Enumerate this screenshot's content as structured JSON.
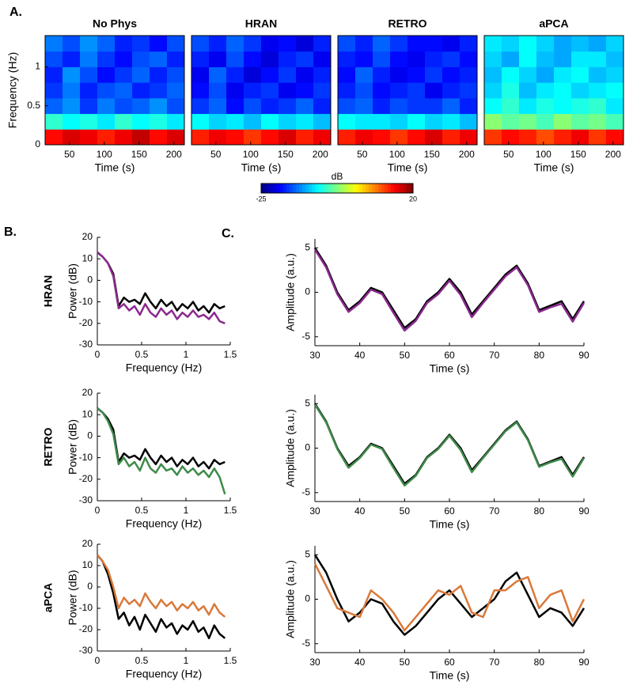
{
  "chart_data": [
    {
      "type": "heatmap",
      "panel_label": "A.",
      "title": "No Phys",
      "xlabel": "Time (s)",
      "ylabel": "Frequency (Hz)",
      "xbins": [
        15,
        40,
        65,
        90,
        115,
        140,
        165,
        190,
        215
      ],
      "ybins": [
        0,
        0.2,
        0.4,
        0.6,
        0.8,
        1,
        1.2,
        1.4
      ],
      "xlim": [
        15,
        215
      ],
      "ylim": [
        0,
        1.4
      ],
      "xticks": [
        50,
        100,
        150,
        200
      ],
      "yticks": [
        0,
        0.5,
        1
      ],
      "values": [
        [
          14,
          16,
          15,
          13,
          15,
          17,
          14,
          16
        ],
        [
          -6,
          -8,
          -7,
          -9,
          -6,
          -8,
          -7,
          -9
        ],
        [
          -15,
          -13,
          -17,
          -14,
          -16,
          -15,
          -13,
          -16
        ],
        [
          -17,
          -14,
          -18,
          -16,
          -15,
          -18,
          -17,
          -15
        ],
        [
          -18,
          -13,
          -16,
          -19,
          -17,
          -15,
          -18,
          -16
        ],
        [
          -16,
          -18,
          -14,
          -17,
          -19,
          -16,
          -15,
          -18
        ],
        [
          -14,
          -16,
          -13,
          -15,
          -18,
          -17,
          -19,
          -16
        ]
      ]
    },
    {
      "type": "heatmap",
      "title": "HRAN",
      "xlabel": "Time (s)",
      "xbins": [
        15,
        40,
        65,
        90,
        115,
        140,
        165,
        190,
        215
      ],
      "ybins": [
        0,
        0.2,
        0.4,
        0.6,
        0.8,
        1,
        1.2,
        1.4
      ],
      "xlim": [
        15,
        215
      ],
      "ylim": [
        0,
        1.4
      ],
      "xticks": [
        50,
        100,
        150,
        200
      ],
      "values": [
        [
          13,
          15,
          14,
          12,
          14,
          16,
          13,
          15
        ],
        [
          -8,
          -10,
          -9,
          -11,
          -8,
          -10,
          -9,
          -11
        ],
        [
          -17,
          -15,
          -19,
          -16,
          -18,
          -17,
          -15,
          -18
        ],
        [
          -19,
          -16,
          -20,
          -18,
          -17,
          -20,
          -19,
          -17
        ],
        [
          -20,
          -15,
          -18,
          -21,
          -19,
          -17,
          -20,
          -18
        ],
        [
          -18,
          -20,
          -16,
          -19,
          -21,
          -18,
          -17,
          -20
        ],
        [
          -16,
          -18,
          -15,
          -17,
          -20,
          -19,
          -21,
          -18
        ]
      ]
    },
    {
      "type": "heatmap",
      "title": "RETRO",
      "xlabel": "Time (s)",
      "xbins": [
        15,
        40,
        65,
        90,
        115,
        140,
        165,
        190,
        215
      ],
      "ybins": [
        0,
        0.2,
        0.4,
        0.6,
        0.8,
        1,
        1.2,
        1.4
      ],
      "xlim": [
        15,
        215
      ],
      "ylim": [
        0,
        1.4
      ],
      "xticks": [
        50,
        100,
        150,
        200
      ],
      "values": [
        [
          13,
          15,
          14,
          12,
          14,
          16,
          13,
          15
        ],
        [
          -8,
          -9,
          -9,
          -10,
          -8,
          -10,
          -9,
          -11
        ],
        [
          -16,
          -15,
          -18,
          -16,
          -17,
          -17,
          -15,
          -18
        ],
        [
          -18,
          -16,
          -19,
          -18,
          -17,
          -20,
          -18,
          -17
        ],
        [
          -19,
          -15,
          -18,
          -20,
          -19,
          -17,
          -19,
          -18
        ],
        [
          -18,
          -19,
          -16,
          -19,
          -20,
          -18,
          -17,
          -19
        ],
        [
          -16,
          -18,
          -15,
          -17,
          -19,
          -19,
          -20,
          -18
        ]
      ]
    },
    {
      "type": "heatmap",
      "title": "aPCA",
      "xlabel": "Time (s)",
      "xbins": [
        15,
        40,
        65,
        90,
        115,
        140,
        165,
        190,
        215
      ],
      "ybins": [
        0,
        0.2,
        0.4,
        0.6,
        0.8,
        1,
        1.2,
        1.4
      ],
      "xlim": [
        15,
        215
      ],
      "ylim": [
        0,
        1.4
      ],
      "xticks": [
        50,
        100,
        150,
        200
      ],
      "values": [
        [
          12,
          14,
          13,
          11,
          13,
          15,
          12,
          14
        ],
        [
          -2,
          -4,
          -3,
          -5,
          -2,
          -4,
          -3,
          -5
        ],
        [
          -8,
          -6,
          -9,
          -7,
          -8,
          -7,
          -6,
          -9
        ],
        [
          -10,
          -7,
          -11,
          -9,
          -8,
          -10,
          -9,
          -8
        ],
        [
          -11,
          -8,
          -10,
          -12,
          -9,
          -8,
          -11,
          -10
        ],
        [
          -10,
          -12,
          -8,
          -11,
          -12,
          -9,
          -9,
          -11
        ],
        [
          -9,
          -10,
          -8,
          -10,
          -12,
          -11,
          -12,
          -10
        ]
      ]
    },
    {
      "type": "colorbar",
      "label": "dB",
      "zlim": [
        -25,
        20
      ],
      "zticks": [
        -25,
        20
      ]
    },
    {
      "type": "line",
      "panel_label": "B.",
      "row_label": "HRAN",
      "xlabel": "Frequency (Hz)",
      "ylabel": "Power (dB)",
      "xlim": [
        0,
        1.5
      ],
      "ylim": [
        -30,
        20
      ],
      "xticks": [
        0,
        0.5,
        1,
        1.5
      ],
      "yticks": [
        -30,
        -20,
        -10,
        0,
        10,
        20
      ],
      "x": [
        0,
        0.06,
        0.12,
        0.18,
        0.24,
        0.3,
        0.36,
        0.42,
        0.48,
        0.54,
        0.6,
        0.66,
        0.72,
        0.78,
        0.84,
        0.9,
        0.96,
        1.02,
        1.08,
        1.14,
        1.2,
        1.26,
        1.32,
        1.38,
        1.44
      ],
      "series": [
        {
          "color": "#000000",
          "values": [
            13,
            11,
            8,
            3,
            -12,
            -8,
            -10,
            -9,
            -11,
            -6,
            -10,
            -13,
            -9,
            -12,
            -10,
            -14,
            -11,
            -13,
            -10,
            -14,
            -12,
            -15,
            -11,
            -13,
            -12
          ]
        },
        {
          "color": "#8b2a8f",
          "values": [
            13,
            11,
            8,
            2,
            -13,
            -11,
            -14,
            -12,
            -16,
            -11,
            -15,
            -17,
            -13,
            -16,
            -14,
            -18,
            -15,
            -17,
            -14,
            -17,
            -16,
            -18,
            -15,
            -19,
            -20
          ]
        }
      ]
    },
    {
      "type": "line",
      "row_label": "RETRO",
      "xlabel": "Frequency (Hz)",
      "ylabel": "Power (dB)",
      "xlim": [
        0,
        1.5
      ],
      "ylim": [
        -30,
        20
      ],
      "xticks": [
        0,
        0.5,
        1,
        1.5
      ],
      "yticks": [
        -30,
        -20,
        -10,
        0,
        10,
        20
      ],
      "x": [
        0,
        0.06,
        0.12,
        0.18,
        0.24,
        0.3,
        0.36,
        0.42,
        0.48,
        0.54,
        0.6,
        0.66,
        0.72,
        0.78,
        0.84,
        0.9,
        0.96,
        1.02,
        1.08,
        1.14,
        1.2,
        1.26,
        1.32,
        1.38,
        1.44
      ],
      "series": [
        {
          "color": "#000000",
          "values": [
            13,
            11,
            8,
            3,
            -12,
            -8,
            -10,
            -9,
            -11,
            -6,
            -10,
            -13,
            -9,
            -12,
            -10,
            -14,
            -11,
            -13,
            -10,
            -14,
            -12,
            -15,
            -11,
            -13,
            -12
          ]
        },
        {
          "color": "#3f8a4a",
          "values": [
            13,
            11,
            7,
            1,
            -13,
            -10,
            -14,
            -12,
            -16,
            -10,
            -15,
            -17,
            -13,
            -16,
            -15,
            -18,
            -14,
            -17,
            -15,
            -18,
            -16,
            -19,
            -15,
            -19,
            -27
          ]
        }
      ]
    },
    {
      "type": "line",
      "row_label": "aPCA",
      "xlabel": "Frequency (Hz)",
      "ylabel": "Power (dB)",
      "xlim": [
        0,
        1.5
      ],
      "ylim": [
        -30,
        20
      ],
      "xticks": [
        0,
        0.5,
        1,
        1.5
      ],
      "yticks": [
        -30,
        -20,
        -10,
        0,
        10,
        20
      ],
      "x": [
        0,
        0.06,
        0.12,
        0.18,
        0.24,
        0.3,
        0.36,
        0.42,
        0.48,
        0.54,
        0.6,
        0.66,
        0.72,
        0.78,
        0.84,
        0.9,
        0.96,
        1.02,
        1.08,
        1.14,
        1.2,
        1.26,
        1.32,
        1.38,
        1.44
      ],
      "series": [
        {
          "color": "#000000",
          "values": [
            15,
            12,
            6,
            -3,
            -15,
            -12,
            -18,
            -14,
            -20,
            -13,
            -17,
            -21,
            -15,
            -19,
            -17,
            -22,
            -18,
            -20,
            -16,
            -21,
            -19,
            -24,
            -18,
            -22,
            -24
          ]
        },
        {
          "color": "#d9793a",
          "values": [
            15,
            12,
            8,
            0,
            -10,
            -5,
            -8,
            -6,
            -9,
            -3,
            -7,
            -10,
            -6,
            -9,
            -7,
            -11,
            -8,
            -10,
            -7,
            -11,
            -9,
            -13,
            -8,
            -12,
            -14
          ]
        }
      ]
    },
    {
      "type": "line",
      "panel_label": "C.",
      "xlabel": "Time (s)",
      "ylabel": "Amplitude (a.u.)",
      "xlim": [
        30,
        90
      ],
      "ylim": [
        -6,
        6
      ],
      "xticks": [
        30,
        40,
        50,
        60,
        70,
        80,
        90
      ],
      "yticks": [
        -5,
        0,
        5
      ],
      "x": [
        30,
        32.5,
        35,
        37.5,
        40,
        42.5,
        45,
        47.5,
        50,
        52.5,
        55,
        57.5,
        60,
        62.5,
        65,
        67.5,
        70,
        72.5,
        75,
        77.5,
        80,
        82.5,
        85,
        87.5,
        90
      ],
      "series": [
        {
          "color": "#000000",
          "values": [
            5,
            3,
            0,
            -2,
            -1,
            0.5,
            0,
            -2,
            -4,
            -3,
            -1,
            0,
            1.5,
            0,
            -2.5,
            -1,
            0.5,
            2,
            3,
            1,
            -2,
            -1.5,
            -1,
            -3,
            -1
          ]
        },
        {
          "color": "#8b2a8f",
          "values": [
            4.8,
            2.8,
            -0.2,
            -2.2,
            -1.2,
            0.3,
            -0.2,
            -2.3,
            -4.3,
            -3.2,
            -1.2,
            -0.2,
            1.3,
            -0.3,
            -2.8,
            -1.2,
            0.3,
            1.8,
            2.8,
            0.8,
            -2.2,
            -1.7,
            -1.3,
            -3.3,
            -1.2
          ]
        }
      ]
    },
    {
      "type": "line",
      "xlabel": "Time (s)",
      "ylabel": "Amplitude (a.u.)",
      "xlim": [
        30,
        90
      ],
      "ylim": [
        -6,
        6
      ],
      "xticks": [
        30,
        40,
        50,
        60,
        70,
        80,
        90
      ],
      "yticks": [
        -5,
        0,
        5
      ],
      "x": [
        30,
        32.5,
        35,
        37.5,
        40,
        42.5,
        45,
        47.5,
        50,
        52.5,
        55,
        57.5,
        60,
        62.5,
        65,
        67.5,
        70,
        72.5,
        75,
        77.5,
        80,
        82.5,
        85,
        87.5,
        90
      ],
      "series": [
        {
          "color": "#000000",
          "values": [
            5,
            3,
            0,
            -2,
            -1,
            0.5,
            0,
            -2,
            -4,
            -3,
            -1,
            0,
            1.5,
            0,
            -2.5,
            -1,
            0.5,
            2,
            3,
            1,
            -2,
            -1.5,
            -1,
            -3,
            -1
          ]
        },
        {
          "color": "#3f8a4a",
          "values": [
            4.9,
            2.9,
            -0.1,
            -2.2,
            -1.1,
            0.4,
            -0.1,
            -2.2,
            -4.2,
            -3.1,
            -1.1,
            -0.1,
            1.4,
            -0.2,
            -2.7,
            -1.1,
            0.4,
            1.9,
            2.9,
            0.9,
            -2.1,
            -1.6,
            -1.2,
            -3.2,
            -1.1
          ]
        }
      ]
    },
    {
      "type": "line",
      "xlabel": "Time (s)",
      "ylabel": "Amplitude (a.u.)",
      "xlim": [
        30,
        90
      ],
      "ylim": [
        -6,
        6
      ],
      "xticks": [
        30,
        40,
        50,
        60,
        70,
        80,
        90
      ],
      "yticks": [
        -5,
        0,
        5
      ],
      "x": [
        30,
        32.5,
        35,
        37.5,
        40,
        42.5,
        45,
        47.5,
        50,
        52.5,
        55,
        57.5,
        60,
        62.5,
        65,
        67.5,
        70,
        72.5,
        75,
        77.5,
        80,
        82.5,
        85,
        87.5,
        90
      ],
      "series": [
        {
          "color": "#000000",
          "values": [
            5,
            3,
            0,
            -2.5,
            -1.5,
            0,
            -0.5,
            -2.5,
            -4,
            -3,
            -1.5,
            0,
            1,
            -0.5,
            -2,
            -1,
            0,
            2,
            3,
            0.5,
            -2,
            -1,
            -1.5,
            -3,
            -1
          ]
        },
        {
          "color": "#d9793a",
          "values": [
            4,
            1.5,
            -1,
            -1.5,
            -2,
            1,
            0,
            -1.5,
            -3.5,
            -2,
            -0.5,
            1,
            0.5,
            1.5,
            -1.5,
            -2,
            1,
            1,
            2,
            2.5,
            -1,
            0.5,
            1,
            -2.5,
            0
          ]
        }
      ]
    }
  ]
}
